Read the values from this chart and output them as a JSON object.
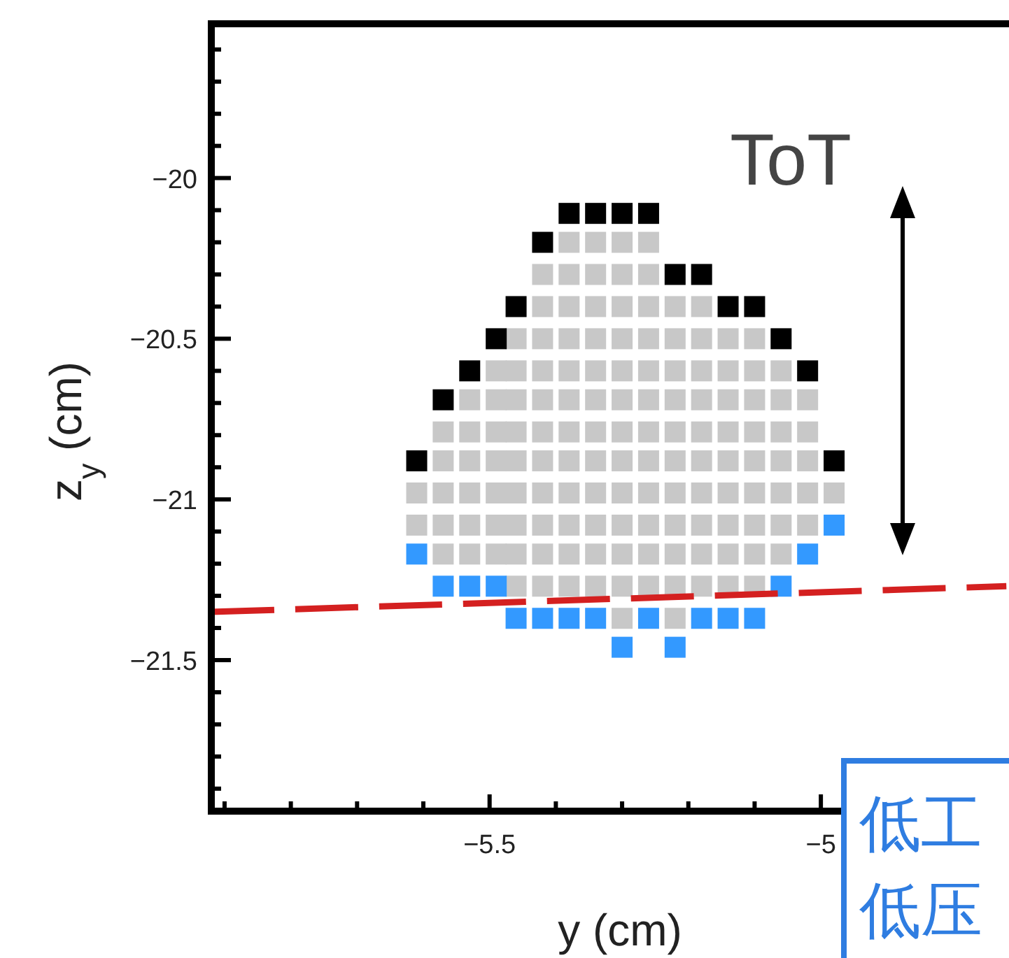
{
  "chart_data": {
    "type": "scatter",
    "xlabel": "y (cm)",
    "ylabel": "z$_{y}$ (cm)",
    "marker": "square",
    "xlim": [
      -5.92,
      -4.64
    ],
    "ylim": [
      -21.97,
      -19.52
    ],
    "xticks": [
      {
        "value": -5.9,
        "label": null
      },
      {
        "value": -5.8,
        "label": null
      },
      {
        "value": -5.7,
        "label": null
      },
      {
        "value": -5.6,
        "label": null
      },
      {
        "value": -5.5,
        "label": "−5.5"
      },
      {
        "value": -5.4,
        "label": null
      },
      {
        "value": -5.3,
        "label": null
      },
      {
        "value": -5.2,
        "label": null
      },
      {
        "value": -5.1,
        "label": null
      },
      {
        "value": -5,
        "label": "−5"
      },
      {
        "value": -4.9,
        "label": null
      },
      {
        "value": -4.8,
        "label": null
      },
      {
        "value": -4.7,
        "label": null
      }
    ],
    "yticks": [
      {
        "value": -19.6,
        "label": null
      },
      {
        "value": -19.7,
        "label": null
      },
      {
        "value": -19.8,
        "label": null
      },
      {
        "value": -19.9,
        "label": null
      },
      {
        "value": -20,
        "label": "−20"
      },
      {
        "value": -20.1,
        "label": null
      },
      {
        "value": -20.2,
        "label": null
      },
      {
        "value": -20.3,
        "label": null
      },
      {
        "value": -20.4,
        "label": null
      },
      {
        "value": -20.5,
        "label": "−20.5"
      },
      {
        "value": -20.6,
        "label": null
      },
      {
        "value": -20.7,
        "label": null
      },
      {
        "value": -20.8,
        "label": null
      },
      {
        "value": -20.9,
        "label": null
      },
      {
        "value": -21,
        "label": "−21"
      },
      {
        "value": -21.1,
        "label": null
      },
      {
        "value": -21.2,
        "label": null
      },
      {
        "value": -21.3,
        "label": null
      },
      {
        "value": -21.4,
        "label": null
      },
      {
        "value": -21.5,
        "label": "−21.5"
      },
      {
        "value": -21.6,
        "label": null
      },
      {
        "value": -21.7,
        "label": null
      },
      {
        "value": -21.8,
        "label": null
      },
      {
        "value": -21.9,
        "label": null
      }
    ],
    "annotations": [
      "ToT",
      "低工",
      "低压"
    ],
    "series": [
      {
        "color": "#c8c8c8",
        "x": [
          -5.38,
          -5.34,
          -5.3,
          -5.26,
          -5.42,
          -5.38,
          -5.34,
          -5.3,
          -5.26,
          -5.42,
          -5.38,
          -5.34,
          -5.3,
          -5.26,
          -5.22,
          -5.18,
          -5.46,
          -5.42,
          -5.38,
          -5.34,
          -5.3,
          -5.26,
          -5.22,
          -5.18,
          -5.14,
          -5.1,
          -5.49,
          -5.46,
          -5.42,
          -5.38,
          -5.34,
          -5.3,
          -5.26,
          -5.22,
          -5.18,
          -5.14,
          -5.1,
          -5.06,
          -5.53,
          -5.49,
          -5.46,
          -5.42,
          -5.38,
          -5.34,
          -5.3,
          -5.26,
          -5.22,
          -5.18,
          -5.14,
          -5.1,
          -5.06,
          -5.02,
          -5.57,
          -5.53,
          -5.49,
          -5.46,
          -5.42,
          -5.38,
          -5.34,
          -5.3,
          -5.26,
          -5.22,
          -5.18,
          -5.14,
          -5.1,
          -5.06,
          -5.02,
          -5.57,
          -5.53,
          -5.49,
          -5.46,
          -5.42,
          -5.38,
          -5.34,
          -5.3,
          -5.26,
          -5.22,
          -5.18,
          -5.14,
          -5.1,
          -5.06,
          -5.02,
          -5.61,
          -5.57,
          -5.53,
          -5.49,
          -5.46,
          -5.42,
          -5.38,
          -5.34,
          -5.3,
          -5.26,
          -5.22,
          -5.18,
          -5.14,
          -5.1,
          -5.06,
          -5.02,
          -4.98,
          -5.61,
          -5.57,
          -5.53,
          -5.49,
          -5.46,
          -5.42,
          -5.38,
          -5.34,
          -5.3,
          -5.26,
          -5.22,
          -5.18,
          -5.14,
          -5.1,
          -5.06,
          -5.02,
          -5.57,
          -5.53,
          -5.49,
          -5.46,
          -5.42,
          -5.38,
          -5.34,
          -5.3,
          -5.26,
          -5.22,
          -5.18,
          -5.14,
          -5.1,
          -5.06,
          -5.46,
          -5.42,
          -5.38,
          -5.34,
          -5.3,
          -5.26,
          -5.22,
          -5.18,
          -5.14,
          -5.1,
          -5.3,
          -5.22
        ],
        "values": [
          -20.2,
          -20.2,
          -20.2,
          -20.2,
          -20.3,
          -20.3,
          -20.3,
          -20.3,
          -20.3,
          -20.4,
          -20.4,
          -20.4,
          -20.4,
          -20.4,
          -20.4,
          -20.4,
          -20.5,
          -20.5,
          -20.5,
          -20.5,
          -20.5,
          -20.5,
          -20.5,
          -20.5,
          -20.5,
          -20.5,
          -20.6,
          -20.6,
          -20.6,
          -20.6,
          -20.6,
          -20.6,
          -20.6,
          -20.6,
          -20.6,
          -20.6,
          -20.6,
          -20.6,
          -20.69,
          -20.69,
          -20.69,
          -20.69,
          -20.69,
          -20.69,
          -20.69,
          -20.69,
          -20.69,
          -20.69,
          -20.69,
          -20.69,
          -20.69,
          -20.69,
          -20.79,
          -20.79,
          -20.79,
          -20.79,
          -20.79,
          -20.79,
          -20.79,
          -20.79,
          -20.79,
          -20.79,
          -20.79,
          -20.79,
          -20.79,
          -20.79,
          -20.79,
          -20.88,
          -20.88,
          -20.88,
          -20.88,
          -20.88,
          -20.88,
          -20.88,
          -20.88,
          -20.88,
          -20.88,
          -20.88,
          -20.88,
          -20.88,
          -20.88,
          -20.88,
          -20.98,
          -20.98,
          -20.98,
          -20.98,
          -20.98,
          -20.98,
          -20.98,
          -20.98,
          -20.98,
          -20.98,
          -20.98,
          -20.98,
          -20.98,
          -20.98,
          -20.98,
          -20.98,
          -20.98,
          -21.08,
          -21.08,
          -21.08,
          -21.08,
          -21.08,
          -21.08,
          -21.08,
          -21.08,
          -21.08,
          -21.08,
          -21.08,
          -21.08,
          -21.08,
          -21.08,
          -21.08,
          -21.08,
          -21.17,
          -21.17,
          -21.17,
          -21.17,
          -21.17,
          -21.17,
          -21.17,
          -21.17,
          -21.17,
          -21.17,
          -21.17,
          -21.17,
          -21.17,
          -21.17,
          -21.27,
          -21.27,
          -21.27,
          -21.27,
          -21.27,
          -21.27,
          -21.27,
          -21.27,
          -21.27,
          -21.27,
          -21.37,
          -21.37
        ]
      },
      {
        "color": "#000000",
        "x": [
          -5.38,
          -5.34,
          -5.3,
          -5.26,
          -5.42,
          -5.22,
          -5.18,
          -5.46,
          -5.14,
          -5.1,
          -5.49,
          -5.06,
          -5.53,
          -5.02,
          -5.57,
          -5.61,
          -4.98
        ],
        "values": [
          -20.11,
          -20.11,
          -20.11,
          -20.11,
          -20.2,
          -20.3,
          -20.3,
          -20.4,
          -20.4,
          -20.4,
          -20.5,
          -20.5,
          -20.6,
          -20.6,
          -20.69,
          -20.88,
          -20.88
        ]
      },
      {
        "color": "#3399ff",
        "x": [
          -4.98,
          -5.61,
          -5.02,
          -5.57,
          -5.53,
          -5.49,
          -5.06,
          -5.46,
          -5.42,
          -5.38,
          -5.34,
          -5.26,
          -5.18,
          -5.14,
          -5.1,
          -5.3,
          -5.22
        ],
        "values": [
          -21.08,
          -21.17,
          -21.17,
          -21.27,
          -21.27,
          -21.27,
          -21.27,
          -21.37,
          -21.37,
          -21.37,
          -21.37,
          -21.37,
          -21.37,
          -21.37,
          -21.37,
          -21.46,
          -21.46
        ]
      },
      {
        "type": "line",
        "color": "#d42020",
        "line_style": "dashed",
        "marker": "none",
        "x": [
          -5.92,
          -4.72
        ],
        "values": [
          -21.35,
          -21.27
        ]
      }
    ]
  }
}
